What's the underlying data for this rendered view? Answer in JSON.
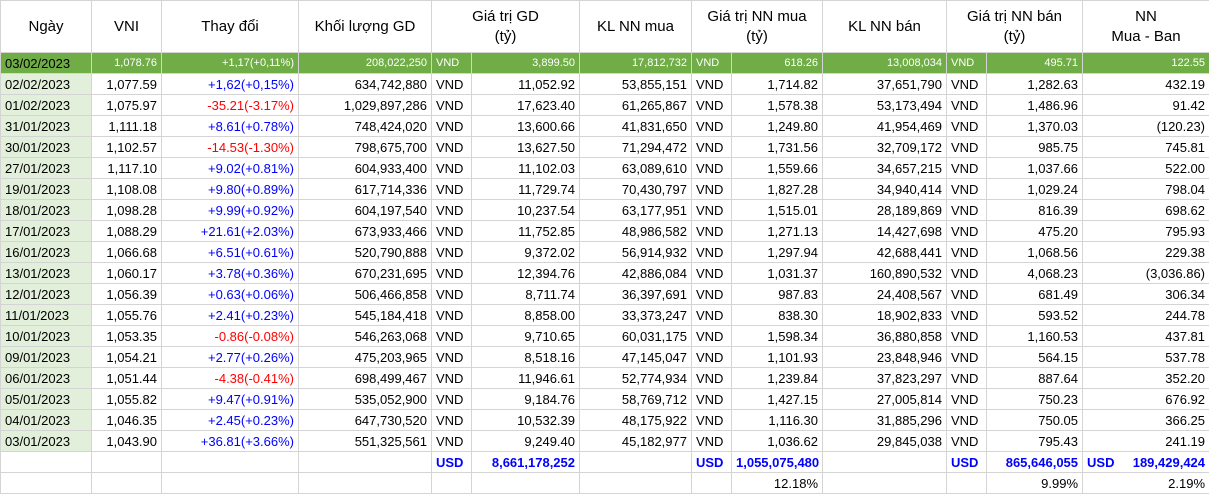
{
  "headers": {
    "date": "Ngày",
    "vni": "VNI",
    "change": "Thay đổi",
    "volume": "Khối lượng GD",
    "value_l1": "Giá trị GD",
    "value_l2": "(tỷ)",
    "kl_nn_mua": "KL NN mua",
    "gt_nn_mua_l1": "Giá trị NN mua",
    "gt_nn_mua_l2": "(tỷ)",
    "kl_nn_ban": "KL NN bán",
    "gt_nn_ban_l1": "Giá trị NN bán",
    "gt_nn_ban_l2": "(tỷ)",
    "nn_net_l1": "NN",
    "nn_net_l2": "Mua - Ban"
  },
  "highlight_row": {
    "date": "03/02/2023",
    "vni": "1,078.76",
    "change": "+1,17(+0,11%)",
    "volume": "208,022,250",
    "cur1": "VND",
    "value": "3,899.50",
    "kl_mua": "17,812,732",
    "cur2": "VND",
    "gt_mua": "618.26",
    "kl_ban": "13,008,034",
    "cur3": "VND",
    "gt_ban": "495.71",
    "net": "122.55"
  },
  "rows": [
    {
      "date": "02/02/2023",
      "vni": "1,077.59",
      "change": "+1,62(+0,15%)",
      "dir": "up",
      "volume": "634,742,880",
      "value": "11,052.92",
      "kl_mua": "53,855,151",
      "gt_mua": "1,714.82",
      "kl_ban": "37,651,790",
      "gt_ban": "1,282.63",
      "net": "432.19"
    },
    {
      "date": "01/02/2023",
      "vni": "1,075.97",
      "change": "-35.21(-3.17%)",
      "dir": "down",
      "volume": "1,029,897,286",
      "value": "17,623.40",
      "kl_mua": "61,265,867",
      "gt_mua": "1,578.38",
      "kl_ban": "53,173,494",
      "gt_ban": "1,486.96",
      "net": "91.42"
    },
    {
      "date": "31/01/2023",
      "vni": "1,111.18",
      "change": "+8.61(+0.78%)",
      "dir": "up",
      "volume": "748,424,020",
      "value": "13,600.66",
      "kl_mua": "41,831,650",
      "gt_mua": "1,249.80",
      "kl_ban": "41,954,469",
      "gt_ban": "1,370.03",
      "net": "(120.23)"
    },
    {
      "date": "30/01/2023",
      "vni": "1,102.57",
      "change": "-14.53(-1.30%)",
      "dir": "down",
      "volume": "798,675,700",
      "value": "13,627.50",
      "kl_mua": "71,294,472",
      "gt_mua": "1,731.56",
      "kl_ban": "32,709,172",
      "gt_ban": "985.75",
      "net": "745.81"
    },
    {
      "date": "27/01/2023",
      "vni": "1,117.10",
      "change": "+9.02(+0.81%)",
      "dir": "up",
      "volume": "604,933,400",
      "value": "11,102.03",
      "kl_mua": "63,089,610",
      "gt_mua": "1,559.66",
      "kl_ban": "34,657,215",
      "gt_ban": "1,037.66",
      "net": "522.00"
    },
    {
      "date": "19/01/2023",
      "vni": "1,108.08",
      "change": "+9.80(+0.89%)",
      "dir": "up",
      "volume": "617,714,336",
      "value": "11,729.74",
      "kl_mua": "70,430,797",
      "gt_mua": "1,827.28",
      "kl_ban": "34,940,414",
      "gt_ban": "1,029.24",
      "net": "798.04"
    },
    {
      "date": "18/01/2023",
      "vni": "1,098.28",
      "change": "+9.99(+0.92%)",
      "dir": "up",
      "volume": "604,197,540",
      "value": "10,237.54",
      "kl_mua": "63,177,951",
      "gt_mua": "1,515.01",
      "kl_ban": "28,189,869",
      "gt_ban": "816.39",
      "net": "698.62"
    },
    {
      "date": "17/01/2023",
      "vni": "1,088.29",
      "change": "+21.61(+2.03%)",
      "dir": "up",
      "volume": "673,933,466",
      "value": "11,752.85",
      "kl_mua": "48,986,582",
      "gt_mua": "1,271.13",
      "kl_ban": "14,427,698",
      "gt_ban": "475.20",
      "net": "795.93"
    },
    {
      "date": "16/01/2023",
      "vni": "1,066.68",
      "change": "+6.51(+0.61%)",
      "dir": "up",
      "volume": "520,790,888",
      "value": "9,372.02",
      "kl_mua": "56,914,932",
      "gt_mua": "1,297.94",
      "kl_ban": "42,688,441",
      "gt_ban": "1,068.56",
      "net": "229.38"
    },
    {
      "date": "13/01/2023",
      "vni": "1,060.17",
      "change": "+3.78(+0.36%)",
      "dir": "up",
      "volume": "670,231,695",
      "value": "12,394.76",
      "kl_mua": "42,886,084",
      "gt_mua": "1,031.37",
      "kl_ban": "160,890,532",
      "gt_ban": "4,068.23",
      "net": "(3,036.86)"
    },
    {
      "date": "12/01/2023",
      "vni": "1,056.39",
      "change": "+0.63(+0.06%)",
      "dir": "up",
      "volume": "506,466,858",
      "value": "8,711.74",
      "kl_mua": "36,397,691",
      "gt_mua": "987.83",
      "kl_ban": "24,408,567",
      "gt_ban": "681.49",
      "net": "306.34"
    },
    {
      "date": "11/01/2023",
      "vni": "1,055.76",
      "change": "+2.41(+0.23%)",
      "dir": "up",
      "volume": "545,184,418",
      "value": "8,858.00",
      "kl_mua": "33,373,247",
      "gt_mua": "838.30",
      "kl_ban": "18,902,833",
      "gt_ban": "593.52",
      "net": "244.78"
    },
    {
      "date": "10/01/2023",
      "vni": "1,053.35",
      "change": "-0.86(-0.08%)",
      "dir": "down",
      "volume": "546,263,068",
      "value": "9,710.65",
      "kl_mua": "60,031,175",
      "gt_mua": "1,598.34",
      "kl_ban": "36,880,858",
      "gt_ban": "1,160.53",
      "net": "437.81"
    },
    {
      "date": "09/01/2023",
      "vni": "1,054.21",
      "change": "+2.77(+0.26%)",
      "dir": "up",
      "volume": "475,203,965",
      "value": "8,518.16",
      "kl_mua": "47,145,047",
      "gt_mua": "1,101.93",
      "kl_ban": "23,848,946",
      "gt_ban": "564.15",
      "net": "537.78"
    },
    {
      "date": "06/01/2023",
      "vni": "1,051.44",
      "change": "-4.38(-0.41%)",
      "dir": "down",
      "volume": "698,499,467",
      "value": "11,946.61",
      "kl_mua": "52,774,934",
      "gt_mua": "1,239.84",
      "kl_ban": "37,823,297",
      "gt_ban": "887.64",
      "net": "352.20"
    },
    {
      "date": "05/01/2023",
      "vni": "1,055.82",
      "change": "+9.47(+0.91%)",
      "dir": "up",
      "volume": "535,052,900",
      "value": "9,184.76",
      "kl_mua": "58,769,712",
      "gt_mua": "1,427.15",
      "kl_ban": "27,005,814",
      "gt_ban": "750.23",
      "net": "676.92"
    },
    {
      "date": "04/01/2023",
      "vni": "1,046.35",
      "change": "+2.45(+0.23%)",
      "dir": "up",
      "volume": "647,730,520",
      "value": "10,532.39",
      "kl_mua": "48,175,922",
      "gt_mua": "1,116.30",
      "kl_ban": "31,885,296",
      "gt_ban": "750.05",
      "net": "366.25"
    },
    {
      "date": "03/01/2023",
      "vni": "1,043.90",
      "change": "+36.81(+3.66%)",
      "dir": "up",
      "volume": "551,325,561",
      "value": "9,249.40",
      "kl_mua": "45,182,977",
      "gt_mua": "1,036.62",
      "kl_ban": "29,845,038",
      "gt_ban": "795.43",
      "net": "241.19"
    }
  ],
  "currency_label": "VND",
  "totals": {
    "cur": "USD",
    "value": "8,661,178,252",
    "gt_mua": "1,055,075,480",
    "gt_ban": "865,646,055",
    "net": "189,429,424"
  },
  "percents": {
    "gt_mua": "12.18%",
    "gt_ban": "9.99%",
    "net": "2.19%"
  }
}
